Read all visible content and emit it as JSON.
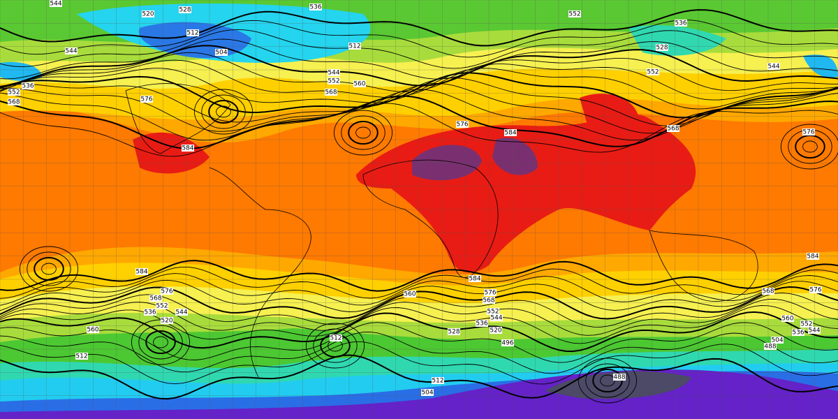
{
  "contour_labels": [
    "544",
    "520",
    "528",
    "536",
    "552",
    "536",
    "512",
    "504",
    "512",
    "528",
    "552",
    "544",
    "544",
    "536",
    "552",
    "568",
    "576",
    "544",
    "552",
    "568",
    "560",
    "576",
    "584",
    "568",
    "576",
    "584",
    "584",
    "584",
    "576",
    "568",
    "552",
    "536",
    "520",
    "544",
    "560",
    "560",
    "576",
    "568",
    "552",
    "544",
    "536",
    "520",
    "528",
    "496",
    "512",
    "568",
    "560",
    "552",
    "536",
    "504",
    "488",
    "544",
    "512",
    "512",
    "504",
    "488",
    "584",
    "576"
  ]
}
